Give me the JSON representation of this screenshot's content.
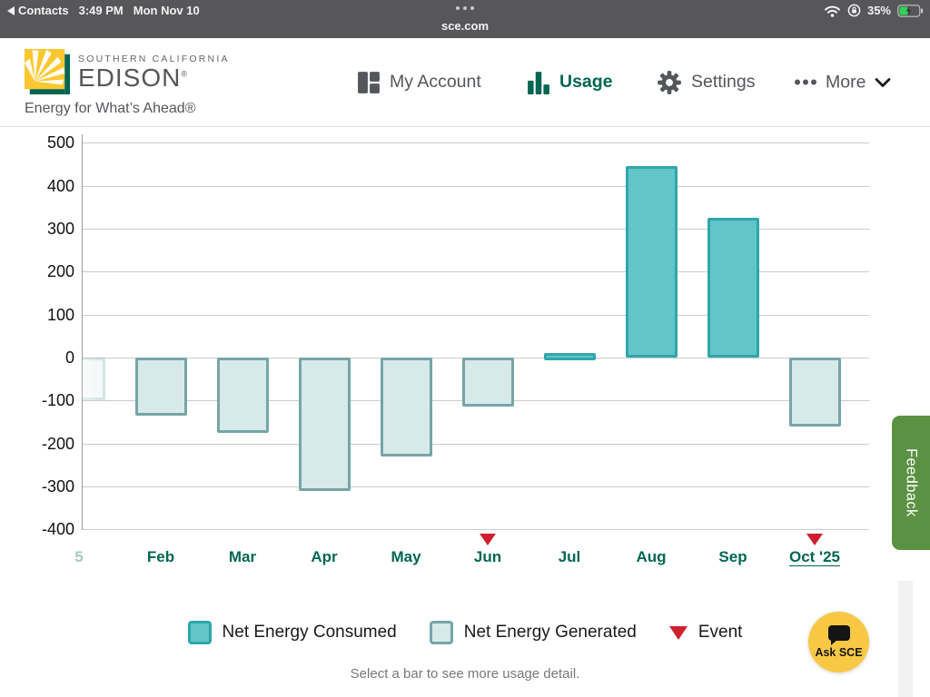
{
  "colors": {
    "brand_green": "#006653",
    "nav_gray": "#53565a",
    "logo_yellow": "#fdc82f",
    "consumed_fill": "#63c5c7",
    "consumed_border": "#2ea7ac",
    "generated_fill": "#d7e9e8",
    "generated_border": "#76a5a7",
    "event_red": "#cf2030",
    "feedback_green": "#5a9142",
    "ask_sce_yellow": "#f8c845",
    "battery_green": "#32d158"
  },
  "status_bar": {
    "back_label": "Contacts",
    "time": "3:49 PM",
    "date": "Mon Nov 10",
    "url": "sce.com",
    "battery": "35%"
  },
  "header": {
    "logo": {
      "line1": "SOUTHERN CALIFORNIA",
      "line2": "EDISON",
      "reg": "®",
      "tagline": "Energy for What’s Ahead®"
    },
    "nav": [
      {
        "label": "My Account",
        "icon": "dashboard-grid-icon",
        "active": false
      },
      {
        "label": "Usage",
        "icon": "bar-chart-icon",
        "active": true
      },
      {
        "label": "Settings",
        "icon": "gear-icon",
        "active": false
      },
      {
        "label": "More",
        "icon": "ellipsis-icon",
        "active": false
      }
    ]
  },
  "chart_data": {
    "type": "bar",
    "title": "",
    "xlabel": "",
    "ylabel": "",
    "ylim": [
      -400,
      500
    ],
    "ytick_step": 100,
    "yticks": [
      500,
      400,
      300,
      200,
      100,
      0,
      -100,
      -200,
      -300,
      -400
    ],
    "grid": true,
    "bars": [
      {
        "label": "5",
        "value": -100,
        "series": "generated",
        "event": false,
        "partial": true
      },
      {
        "label": "Feb",
        "value": -135,
        "series": "generated",
        "event": false
      },
      {
        "label": "Mar",
        "value": -175,
        "series": "generated",
        "event": false
      },
      {
        "label": "Apr",
        "value": -310,
        "series": "generated",
        "event": false
      },
      {
        "label": "May",
        "value": -230,
        "series": "generated",
        "event": false
      },
      {
        "label": "Jun",
        "value": -115,
        "series": "generated",
        "event": true
      },
      {
        "label": "Jul",
        "value": 10,
        "series": "consumed",
        "event": false
      },
      {
        "label": "Aug",
        "value": 445,
        "series": "consumed",
        "event": false
      },
      {
        "label": "Sep",
        "value": 325,
        "series": "consumed",
        "event": false
      },
      {
        "label": "Oct '25",
        "value": -160,
        "series": "generated",
        "event": true,
        "selected": true
      }
    ],
    "hint": "Select a bar to see more usage detail."
  },
  "legend": {
    "items": [
      {
        "label": "Net Energy Consumed",
        "swatch": "consumed"
      },
      {
        "label": "Net Energy Generated",
        "swatch": "generated"
      },
      {
        "label": "Event",
        "swatch": "event-triangle"
      }
    ]
  },
  "feedback": {
    "label": "Feedback"
  },
  "ask_sce": {
    "label": "Ask SCE"
  }
}
